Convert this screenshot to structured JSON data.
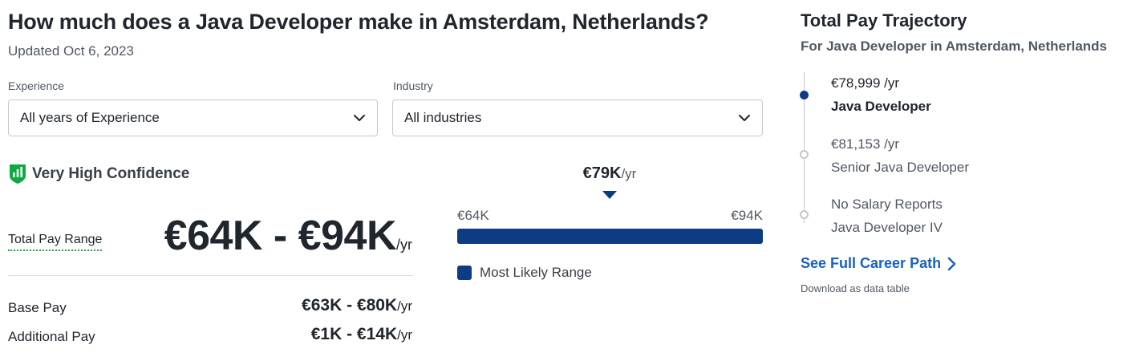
{
  "header": {
    "title": "How much does a Java Developer make in Amsterdam, Netherlands?",
    "updated": "Updated Oct 6, 2023"
  },
  "filters": {
    "experience": {
      "label": "Experience",
      "value": "All years of Experience",
      "icon": "chevron-down-icon"
    },
    "industry": {
      "label": "Industry",
      "value": "All industries",
      "icon": "chevron-down-icon"
    }
  },
  "confidence": {
    "label": "Very High Confidence",
    "icon": "confidence-shield-icon",
    "color": "#0caa41"
  },
  "total_pay": {
    "label": "Total Pay Range",
    "value": "€64K - €94K",
    "unit": "/yr"
  },
  "base_pay": {
    "label": "Base Pay",
    "value": "€63K - €80K",
    "unit": "/yr"
  },
  "additional_pay": {
    "label": "Additional Pay",
    "value": "€1K - €14K",
    "unit": "/yr"
  },
  "range_chart": {
    "median_value": "€79K",
    "median_unit": "/yr",
    "low_label": "€64K",
    "high_label": "€94K",
    "legend": "Most Likely Range",
    "bar_color": "#0d3b84"
  },
  "chart_data": {
    "type": "bar",
    "title": "",
    "min": 64,
    "max": 94,
    "median": 79,
    "most_likely_range": [
      64,
      94
    ],
    "unit": "€K/yr"
  },
  "trajectory": {
    "title": "Total Pay Trajectory",
    "subtitle": "For Java Developer in Amsterdam, Netherlands",
    "items": [
      {
        "salary": "€78,999 /yr",
        "role": "Java Developer",
        "current": true
      },
      {
        "salary": "€81,153 /yr",
        "role": "Senior Java Developer",
        "current": false
      },
      {
        "salary": "No Salary Reports",
        "role": "Java Developer IV",
        "current": false
      }
    ],
    "link": "See Full Career Path",
    "download": "Download as data table"
  },
  "colors": {
    "accent": "#0d3b84",
    "link": "#1861bf",
    "confidence": "#0caa41",
    "text": "#20262e"
  }
}
